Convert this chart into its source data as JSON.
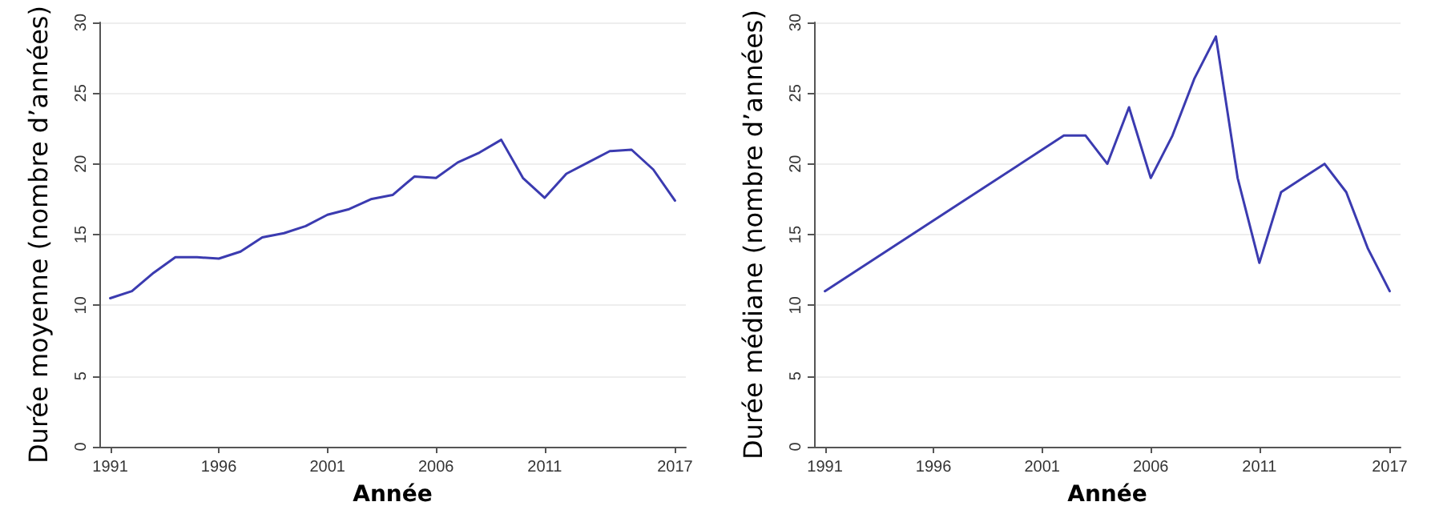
{
  "chart_data": [
    {
      "type": "line",
      "xlabel": "Année",
      "ylabel": "Durée moyenne (nombre d’années)",
      "x": [
        1991,
        1992,
        1993,
        1994,
        1995,
        1996,
        1997,
        1998,
        1999,
        2000,
        2001,
        2002,
        2003,
        2004,
        2005,
        2006,
        2007,
        2008,
        2009,
        2010,
        2011,
        2012,
        2013,
        2014,
        2015,
        2016,
        2017
      ],
      "series": [
        {
          "color": "#3b3bb0",
          "values": [
            10.5,
            11.0,
            12.3,
            13.4,
            13.4,
            13.3,
            13.8,
            14.8,
            15.1,
            15.6,
            16.4,
            16.8,
            17.5,
            17.8,
            19.1,
            19.0,
            20.1,
            20.8,
            21.7,
            19.0,
            17.6,
            19.3,
            20.1,
            20.9,
            21.0,
            19.6,
            17.4
          ]
        }
      ],
      "xlim": [
        1990.5,
        2017.5
      ],
      "xticks": [
        1991,
        1996,
        2001,
        2006,
        2011,
        2017
      ],
      "ylim": [
        0,
        30
      ],
      "yticks": [
        0,
        5,
        10,
        15,
        20,
        25,
        30
      ],
      "grid": "y",
      "marker": "none",
      "line_style": "solid"
    },
    {
      "type": "line",
      "xlabel": "Année",
      "ylabel": "Durée médiane (nombre d’années)",
      "x": [
        1991,
        2002,
        2003,
        2004,
        2005,
        2006,
        2007,
        2008,
        2009,
        2010,
        2011,
        2012,
        2013,
        2014,
        2015,
        2016,
        2017
      ],
      "series": [
        {
          "color": "#3b3bb0",
          "values": [
            11,
            22,
            22,
            20,
            24,
            19,
            22,
            26,
            29,
            19,
            13,
            18,
            19,
            20,
            18,
            14,
            11
          ]
        }
      ],
      "xlim": [
        1990.5,
        2017.5
      ],
      "xticks": [
        1991,
        1996,
        2001,
        2006,
        2011,
        2017
      ],
      "ylim": [
        0,
        30
      ],
      "yticks": [
        0,
        5,
        10,
        15,
        20,
        25,
        30
      ],
      "grid": "y",
      "marker": "none",
      "line_style": "solid"
    }
  ]
}
